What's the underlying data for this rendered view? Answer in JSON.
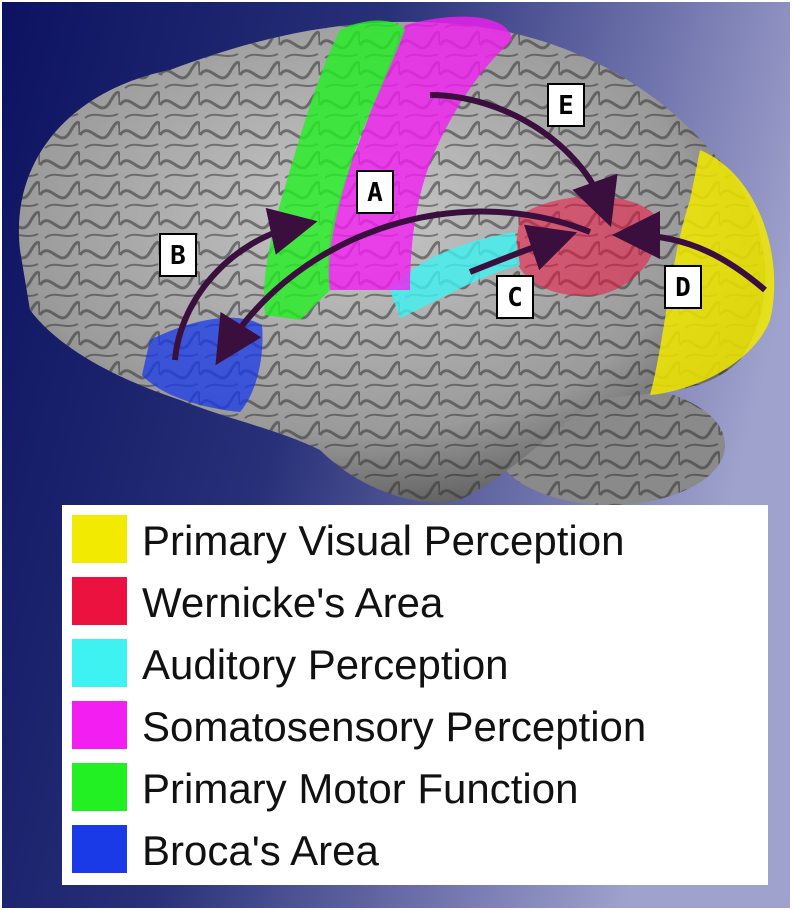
{
  "markers": [
    "A",
    "B",
    "C",
    "D",
    "E"
  ],
  "legend": {
    "items": [
      {
        "label": "Primary Visual Perception",
        "color": "#f2ea00"
      },
      {
        "label": "Wernicke's Area",
        "color": "#ec1240"
      },
      {
        "label": "Auditory Perception",
        "color": "#3ef2f2"
      },
      {
        "label": "Somatosensory Perception",
        "color": "#f21ef2"
      },
      {
        "label": "Primary Motor Function",
        "color": "#22f022"
      },
      {
        "label": "Broca's Area",
        "color": "#1a3ae8"
      }
    ]
  }
}
